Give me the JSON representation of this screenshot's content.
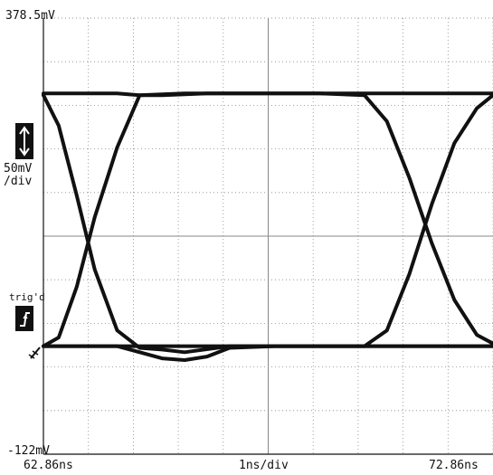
{
  "scope": {
    "vertical_max_label": "378.5mV",
    "vertical_min_label": "-122mV",
    "vertical_scale_label": "50mV\n/div",
    "time_start_label": "62.86ns",
    "time_scale_label": "1ns/div",
    "time_end_label": "72.86ns",
    "trigger_status": "trig'd",
    "trace_color": "#111111",
    "grid_color": "#888888"
  },
  "chart_data": {
    "type": "line",
    "title": "",
    "xlabel": "",
    "ylabel": "",
    "xlim": [
      62.86,
      72.86
    ],
    "ylim": [
      -122,
      378.5
    ],
    "x_unit": "ns",
    "y_unit": "mV",
    "grid": true,
    "x_divisions": 10,
    "y_divisions": 10,
    "series": [
      {
        "x": [
          62.86,
          63.2,
          63.6,
          64.0,
          64.5,
          65.0,
          65.5,
          66.0,
          67.0,
          68.0,
          69.0,
          70.0,
          70.5,
          71.0,
          71.5,
          72.0,
          72.86
        ],
        "values": [
          290,
          255,
          175,
          90,
          20,
          0,
          -2,
          -5,
          2,
          2,
          2,
          2,
          2,
          2,
          2,
          2,
          2
        ]
      },
      {
        "x": [
          62.86,
          63.2,
          63.6,
          64.0,
          64.5,
          65.0,
          66.0,
          67.0,
          68.0,
          69.0,
          70.0,
          70.5,
          71.0,
          71.5,
          72.0,
          72.5,
          72.86
        ],
        "values": [
          2,
          12,
          70,
          150,
          230,
          290,
          292,
          292,
          292,
          292,
          290,
          260,
          195,
          120,
          55,
          15,
          5
        ]
      },
      {
        "x": [
          62.86,
          63.5,
          64.0,
          64.5,
          65.0,
          65.5,
          66.0,
          66.5,
          67.0,
          68.0,
          69.0,
          70.0,
          70.5,
          71.0,
          71.5,
          72.0,
          72.5,
          72.86
        ],
        "values": [
          292,
          292,
          292,
          292,
          290,
          290,
          291,
          292,
          292,
          292,
          292,
          292,
          292,
          292,
          292,
          292,
          292,
          292
        ]
      },
      {
        "x": [
          62.86,
          63.5,
          64.0,
          64.5,
          65.0,
          65.5,
          66.0,
          66.5,
          67.0,
          68.0,
          69.0,
          70.0,
          70.5,
          71.0,
          71.5,
          72.0,
          72.5,
          72.86
        ],
        "values": [
          2,
          2,
          2,
          2,
          -5,
          -12,
          -14,
          -10,
          0,
          2,
          2,
          2,
          2,
          2,
          2,
          2,
          2,
          2
        ]
      },
      {
        "x": [
          62.86,
          63.5,
          64.5,
          65.0,
          66.0,
          68.0,
          70.0,
          70.5,
          71.0,
          71.5,
          72.0,
          72.5,
          72.86
        ],
        "values": [
          2,
          2,
          2,
          2,
          2,
          2,
          2,
          20,
          85,
          165,
          235,
          275,
          290
        ]
      }
    ]
  }
}
